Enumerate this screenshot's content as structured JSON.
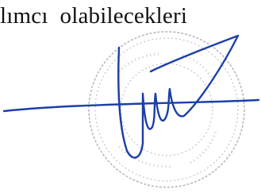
{
  "document": {
    "line_text": "lımcı  olabilecekleri"
  }
}
